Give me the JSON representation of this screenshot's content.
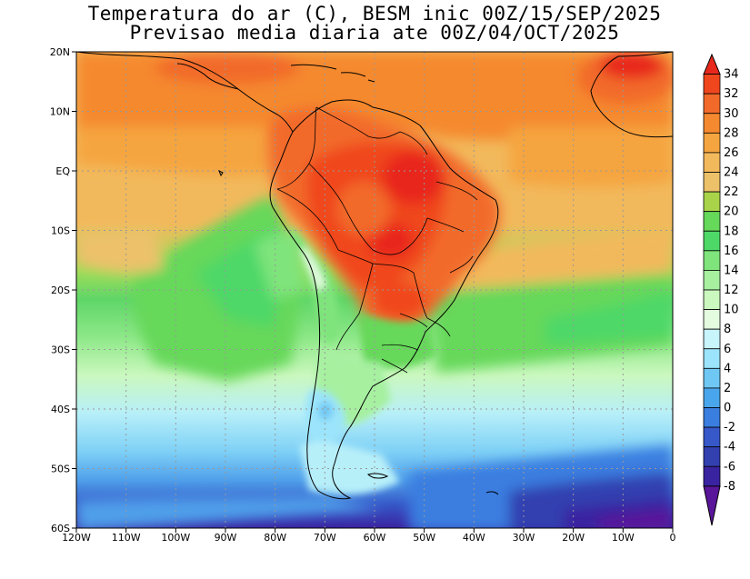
{
  "title_line1": "Temperatura do ar (C), BESM inic 00Z/15/SEP/2025",
  "title_line2": "Previsao media diaria ate 00Z/04/OCT/2025",
  "lat_labels": [
    "20N",
    "10N",
    "EQ",
    "10S",
    "20S",
    "30S",
    "40S",
    "50S",
    "60S"
  ],
  "lon_labels": [
    "120W",
    "110W",
    "100W",
    "90W",
    "80W",
    "70W",
    "60W",
    "50W",
    "40W",
    "30W",
    "20W",
    "10W",
    "0"
  ],
  "colorbar": {
    "labels": [
      "34",
      "32",
      "30",
      "28",
      "26",
      "24",
      "22",
      "20",
      "18",
      "16",
      "14",
      "12",
      "10",
      "8",
      "6",
      "4",
      "2",
      "0",
      "-2",
      "-4",
      "-6",
      "-8"
    ],
    "colors": [
      "#e8281c",
      "#f0461e",
      "#f26a2a",
      "#f5892f",
      "#f5a540",
      "#f2b95c",
      "#ecc16a",
      "#a9d44a",
      "#66d85a",
      "#4ed868",
      "#7fe47c",
      "#a6f0a0",
      "#cbf8bf",
      "#e4fbe0",
      "#c8f4fc",
      "#9be4fb",
      "#6fc8f4",
      "#4aa6ec",
      "#3a7ee0",
      "#3658c8",
      "#3340b0",
      "#3a23a0",
      "#5a169a"
    ]
  },
  "map": {
    "lon_range": [
      -120,
      0
    ],
    "lat_range": [
      -60,
      20
    ],
    "grid": true,
    "ocean_color": "#f2b95c"
  }
}
